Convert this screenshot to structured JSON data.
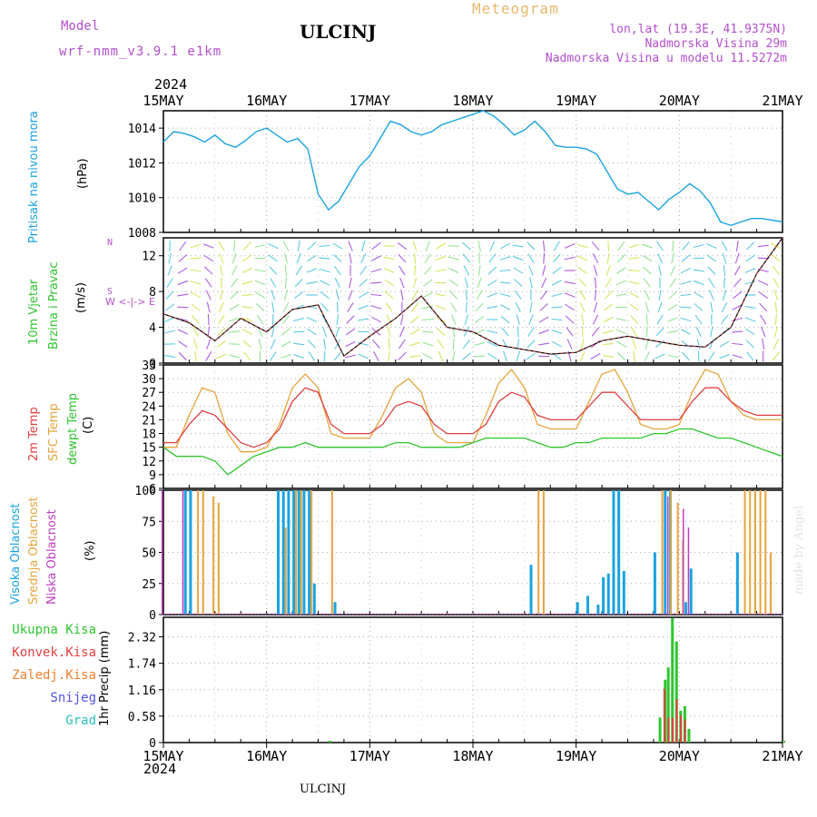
{
  "header": {
    "model_label": "Model",
    "model_name": "wrf-nmm_v3.9.1 e1km",
    "title": "ULCINJ",
    "meteogram_label": "Meteogram",
    "lonlat": "lon,lat (19.3E, 41.9375N)",
    "elevation": "Nadmorska Visina 29m",
    "model_elevation": "Nadmorska Visina u modelu 11.5272m",
    "year_top": "2024",
    "year_bottom": "2024",
    "footer_station": "ULCINJ",
    "credit": "made by Angel"
  },
  "colors": {
    "pressure": "#1aa3e0",
    "wind_title": "#2fc52f",
    "temp2m": "#e04040",
    "sfc": "#e6a43c",
    "dewpt": "#2fc52f",
    "cloud_high": "#1aa3e0",
    "cloud_mid": "#e6a43c",
    "cloud_low": "#c040c0",
    "precip_total": "#2fc52f",
    "precip_conv": "#e04040",
    "precip_frz": "#f08030",
    "precip_snow": "#5050e0",
    "precip_grad": "#30c0c0"
  },
  "panels": {
    "pressure": {
      "label": "Pritisak na nivou mora",
      "unit": "(hPa)"
    },
    "wind": {
      "label1": "10m Vjetar",
      "label2": "Brzina i Pravac",
      "unit": "(m/s)",
      "compass": "W <-|-> E",
      "compass_n": "N",
      "compass_s": "S"
    },
    "temp": {
      "label_2m": "2m Temp",
      "label_sfc": "SFC Temp",
      "label_dew": "dewpt Temp",
      "unit": "(C)"
    },
    "cloud": {
      "label_high": "Visoka Oblacnost",
      "label_mid": "Srednja Oblacnost",
      "label_low": "Niska Oblacnost",
      "unit": "(%)"
    },
    "precip": {
      "legend": [
        "Ukupna Kisa",
        "Konvek.Kisa",
        "Zaledj.Kisa",
        "Snijeg",
        "Grad"
      ],
      "unit": "1hr Precip (mm)"
    }
  },
  "chart_data": {
    "type": "line",
    "x_ticks": [
      "15MAY",
      "16MAY",
      "17MAY",
      "18MAY",
      "19MAY",
      "20MAY",
      "21MAY"
    ],
    "pressure": {
      "ylim": [
        1008,
        1015
      ],
      "yticks": [
        1008,
        1010,
        1012,
        1014
      ],
      "x": [
        0,
        0.1,
        0.2,
        0.3,
        0.4,
        0.5,
        0.6,
        0.7,
        0.8,
        0.9,
        1,
        1.1,
        1.2,
        1.3,
        1.4,
        1.5,
        1.6,
        1.7,
        1.8,
        1.9,
        2,
        2.1,
        2.2,
        2.3,
        2.4,
        2.5,
        2.6,
        2.7,
        2.8,
        2.9,
        3,
        3.1,
        3.2,
        3.3,
        3.4,
        3.5,
        3.6,
        3.7,
        3.8,
        3.9,
        4,
        4.1,
        4.2,
        4.3,
        4.4,
        4.5,
        4.6,
        4.7,
        4.8,
        4.9,
        5,
        5.1,
        5.2,
        5.3,
        5.4,
        5.5,
        5.6,
        5.7,
        5.8,
        5.9,
        6
      ],
      "values": [
        1013.2,
        1013.8,
        1013.7,
        1013.5,
        1013.2,
        1013.6,
        1013.1,
        1012.9,
        1013.3,
        1013.8,
        1014.0,
        1013.6,
        1013.2,
        1013.4,
        1012.8,
        1010.2,
        1009.3,
        1009.8,
        1010.8,
        1011.8,
        1012.4,
        1013.4,
        1014.4,
        1014.2,
        1013.8,
        1013.6,
        1013.8,
        1014.2,
        1014.4,
        1014.6,
        1014.8,
        1015.0,
        1014.7,
        1014.2,
        1013.6,
        1013.9,
        1014.4,
        1013.8,
        1013.0,
        1012.9,
        1012.9,
        1012.8,
        1012.5,
        1011.5,
        1010.5,
        1010.2,
        1010.3,
        1009.8,
        1009.3,
        1009.9,
        1010.3,
        1010.8,
        1010.4,
        1009.7,
        1008.6,
        1008.4,
        1008.6,
        1008.8,
        1008.8,
        1008.7,
        1008.6
      ]
    },
    "wind": {
      "ylim": [
        0,
        14
      ],
      "yticks": [
        0,
        4,
        8,
        12
      ],
      "x": [
        0,
        0.25,
        0.5,
        0.75,
        1,
        1.25,
        1.5,
        1.75,
        2,
        2.25,
        2.5,
        2.75,
        3,
        3.25,
        3.5,
        3.75,
        4,
        4.25,
        4.5,
        4.75,
        5,
        5.25,
        5.5,
        5.75,
        6
      ],
      "speed": [
        5.5,
        4.5,
        2.5,
        5.0,
        3.5,
        6.0,
        6.5,
        0.8,
        3.0,
        5.0,
        7.5,
        4.0,
        3.5,
        2.0,
        1.5,
        1.0,
        1.2,
        2.5,
        3.0,
        2.5,
        2.0,
        1.8,
        4.0,
        10.0,
        14.0
      ]
    },
    "temperature": {
      "ylim": [
        6,
        33
      ],
      "yticks": [
        6,
        9,
        12,
        15,
        18,
        21,
        24,
        27,
        30,
        33
      ],
      "x": [
        0,
        0.125,
        0.25,
        0.375,
        0.5,
        0.625,
        0.75,
        0.875,
        1,
        1.125,
        1.25,
        1.375,
        1.5,
        1.625,
        1.75,
        1.875,
        2,
        2.125,
        2.25,
        2.375,
        2.5,
        2.625,
        2.75,
        2.875,
        3,
        3.125,
        3.25,
        3.375,
        3.5,
        3.625,
        3.75,
        3.875,
        4,
        4.125,
        4.25,
        4.375,
        4.5,
        4.625,
        4.75,
        4.875,
        5,
        5.125,
        5.25,
        5.375,
        5.5,
        5.625,
        5.75,
        5.875,
        6
      ],
      "t2m": [
        16,
        16,
        20,
        23,
        22,
        19,
        16,
        15,
        16,
        19,
        25,
        28,
        27,
        20,
        18,
        18,
        18,
        20,
        24,
        25,
        24,
        20,
        18,
        18,
        18,
        20,
        25,
        27,
        26,
        22,
        21,
        21,
        21,
        24,
        27,
        27,
        24,
        21,
        21,
        21,
        21,
        25,
        28,
        28,
        25,
        23,
        22,
        22,
        22
      ],
      "sfc": [
        15,
        15,
        22,
        28,
        27,
        18,
        14,
        14,
        15,
        20,
        28,
        31,
        28,
        18,
        17,
        17,
        17,
        22,
        28,
        30,
        27,
        18,
        16,
        16,
        16,
        22,
        29,
        32,
        28,
        20,
        19,
        19,
        19,
        25,
        31,
        32,
        27,
        20,
        19,
        19,
        20,
        27,
        32,
        31,
        25,
        22,
        21,
        21,
        21
      ],
      "dewpt": [
        15,
        13,
        13,
        13,
        12,
        9,
        11,
        13,
        14,
        15,
        15,
        16,
        15,
        15,
        15,
        15,
        15,
        15,
        16,
        16,
        15,
        15,
        15,
        15,
        16,
        17,
        17,
        17,
        17,
        16,
        15,
        15,
        16,
        16,
        17,
        17,
        17,
        17,
        18,
        18,
        19,
        19,
        18,
        17,
        17,
        16,
        15,
        14,
        13
      ]
    },
    "cloud": {
      "ylim": [
        0,
        100
      ],
      "yticks": [
        0,
        25,
        50,
        75,
        100
      ],
      "high": [
        [
          0.1,
          0
        ],
        [
          0.2,
          100
        ],
        [
          0.25,
          100
        ],
        [
          1.1,
          100
        ],
        [
          1.15,
          100
        ],
        [
          1.2,
          100
        ],
        [
          1.25,
          100
        ],
        [
          1.3,
          100
        ],
        [
          1.35,
          100
        ],
        [
          1.4,
          100
        ],
        [
          1.45,
          25
        ],
        [
          1.65,
          10
        ],
        [
          3.55,
          40
        ],
        [
          4.0,
          10
        ],
        [
          4.1,
          15
        ],
        [
          4.2,
          8
        ],
        [
          4.25,
          30
        ],
        [
          4.3,
          33
        ],
        [
          4.35,
          100
        ],
        [
          4.4,
          100
        ],
        [
          4.45,
          35
        ],
        [
          4.75,
          50
        ],
        [
          4.85,
          100
        ],
        [
          4.9,
          100
        ],
        [
          5.05,
          10
        ],
        [
          5.1,
          37
        ],
        [
          5.55,
          50
        ]
      ],
      "mid": [
        [
          0.3,
          100
        ],
        [
          0.35,
          100
        ],
        [
          0.45,
          95
        ],
        [
          0.5,
          90
        ],
        [
          1.15,
          70
        ],
        [
          1.25,
          100
        ],
        [
          1.3,
          100
        ],
        [
          1.4,
          100
        ],
        [
          1.6,
          100
        ],
        [
          3.6,
          100
        ],
        [
          3.65,
          100
        ],
        [
          4.8,
          100
        ],
        [
          4.88,
          100
        ],
        [
          4.95,
          90
        ],
        [
          5.0,
          60
        ],
        [
          5.6,
          100
        ],
        [
          5.65,
          100
        ],
        [
          5.7,
          100
        ],
        [
          5.75,
          100
        ],
        [
          5.8,
          100
        ],
        [
          5.85,
          50
        ]
      ],
      "low": [
        [
          0.0,
          100
        ],
        [
          0.2,
          100
        ],
        [
          4.9,
          95
        ],
        [
          5.05,
          85
        ],
        [
          5.1,
          70
        ]
      ]
    },
    "precip": {
      "ylim": [
        0,
        2.75
      ],
      "yticks": [
        0,
        0.58,
        1.16,
        1.74,
        2.32
      ],
      "total": [
        [
          4.8,
          0.55
        ],
        [
          4.85,
          1.38
        ],
        [
          4.88,
          1.65
        ],
        [
          4.92,
          2.74
        ],
        [
          4.96,
          2.22
        ],
        [
          5.0,
          0.7
        ],
        [
          5.04,
          0.8
        ],
        [
          5.08,
          0.3
        ],
        [
          1.6,
          0.04
        ],
        [
          6.0,
          0.04
        ]
      ],
      "convective": [
        [
          4.82,
          1.18
        ],
        [
          4.86,
          0.55
        ],
        [
          4.9,
          0.55
        ],
        [
          4.94,
          0.95
        ],
        [
          4.98,
          0.6
        ],
        [
          5.02,
          0.5
        ]
      ]
    }
  }
}
